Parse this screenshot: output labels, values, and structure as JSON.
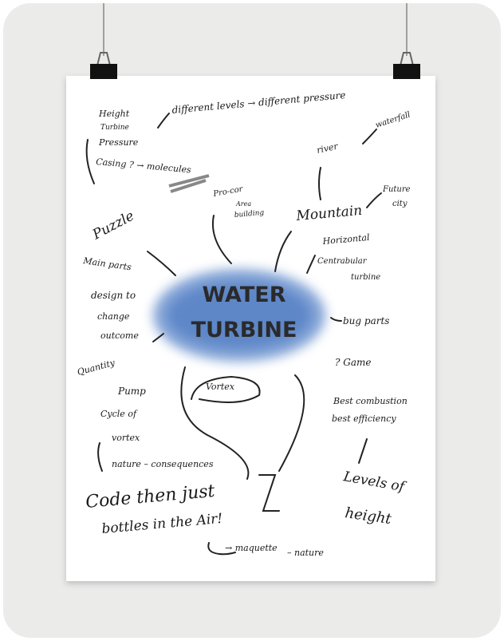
{
  "poster": {
    "title_lines": [
      "WATER",
      "TURBINE"
    ]
  },
  "notes": [
    {
      "text": "Height"
    },
    {
      "text": "Turbine"
    },
    {
      "text": "Pressure"
    },
    {
      "text": "Casing ? → molecules"
    },
    {
      "text": "different levels → different pressure"
    },
    {
      "text": "waterfall"
    },
    {
      "text": "river"
    },
    {
      "text": "Pro-cor"
    },
    {
      "text": "Area"
    },
    {
      "text": "building"
    },
    {
      "text": "Mountain"
    },
    {
      "text": "Future"
    },
    {
      "text": "city"
    },
    {
      "text": "Puzzle"
    },
    {
      "text": "Horizontal"
    },
    {
      "text": "Centrabular"
    },
    {
      "text": "turbine"
    },
    {
      "text": "Main parts"
    },
    {
      "text": "design to"
    },
    {
      "text": "change"
    },
    {
      "text": "outcome"
    },
    {
      "text": "bug parts"
    },
    {
      "text": "Quantity"
    },
    {
      "text": "Pump"
    },
    {
      "text": "Cycle of"
    },
    {
      "text": "vortex"
    },
    {
      "text": "nature – consequences"
    },
    {
      "text": "Vortex"
    },
    {
      "text": "? Game"
    },
    {
      "text": "Best combustion"
    },
    {
      "text": "best efficiency"
    },
    {
      "text": "Levels of"
    },
    {
      "text": "height"
    },
    {
      "text": "Code then just"
    },
    {
      "text": "bottles in the Air!"
    },
    {
      "text": "→ maquette"
    },
    {
      "text": "– nature"
    }
  ]
}
